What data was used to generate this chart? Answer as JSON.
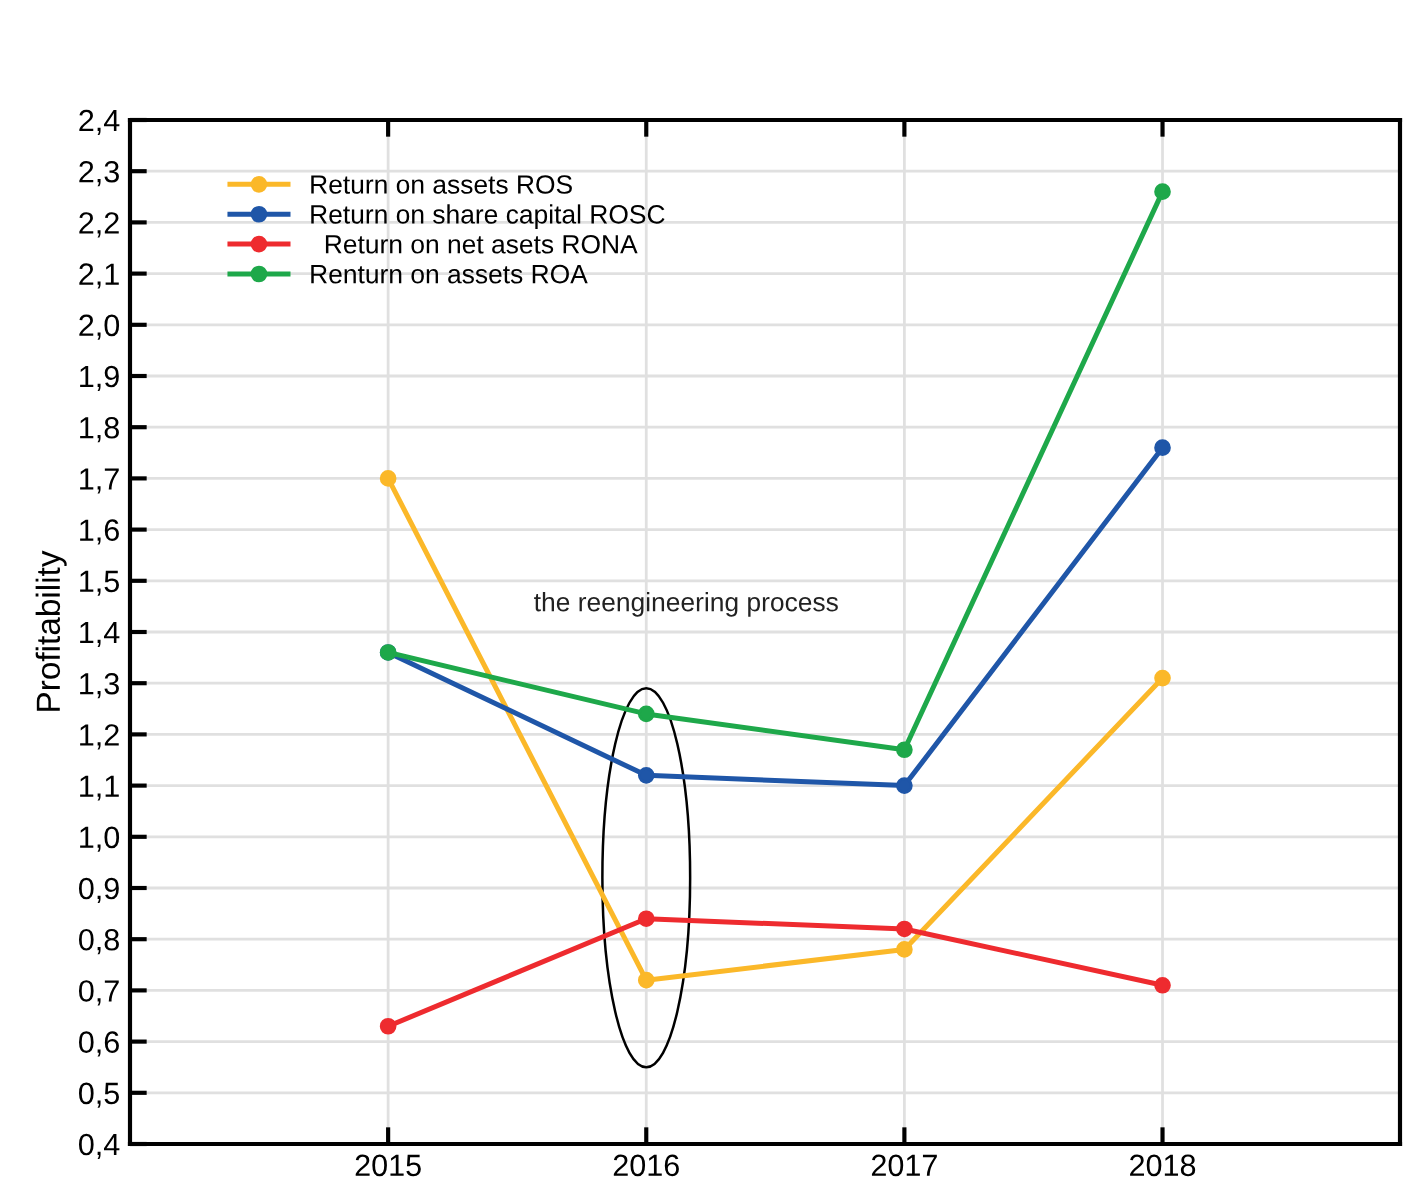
{
  "chart_data": {
    "type": "line",
    "ylabel": "Profitability",
    "x": [
      2015,
      2016,
      2017,
      2018
    ],
    "series": [
      {
        "name": "Return on assets ROS",
        "color": "#fbb829",
        "values": [
          1.7,
          0.72,
          0.78,
          1.31
        ]
      },
      {
        "name": "Return on share capital ROSC",
        "color": "#1f56a8",
        "values": [
          1.36,
          1.12,
          1.1,
          1.76
        ]
      },
      {
        "name": "  Return on net asets RONA",
        "color": "#ee2b2f",
        "values": [
          0.63,
          0.84,
          0.82,
          0.71
        ]
      },
      {
        "name": "Renturn on assets ROA",
        "color": "#1ea84a",
        "values": [
          1.36,
          1.24,
          1.17,
          2.26
        ]
      }
    ],
    "xlim": [
      2014,
      2018.92
    ],
    "xticks": [
      2015,
      2016,
      2017,
      2018
    ],
    "ylim": [
      0.4,
      2.4
    ],
    "yticks": [
      {
        "value": 0.4,
        "label": "0,4"
      },
      {
        "value": 0.5,
        "label": "0,5"
      },
      {
        "value": 0.6,
        "label": "0,6"
      },
      {
        "value": 0.7,
        "label": "0,7"
      },
      {
        "value": 0.8,
        "label": "0,8"
      },
      {
        "value": 0.9,
        "label": "0,9"
      },
      {
        "value": 1.0,
        "label": "1,0"
      },
      {
        "value": 1.1,
        "label": "1,1"
      },
      {
        "value": 1.2,
        "label": "1,2"
      },
      {
        "value": 1.3,
        "label": "1,3"
      },
      {
        "value": 1.4,
        "label": "1,4"
      },
      {
        "value": 1.5,
        "label": "1,5"
      },
      {
        "value": 1.6,
        "label": "1,6"
      },
      {
        "value": 1.7,
        "label": "1,7"
      },
      {
        "value": 1.8,
        "label": "1,8"
      },
      {
        "value": 1.9,
        "label": "1,9"
      },
      {
        "value": 2.0,
        "label": "2,0"
      },
      {
        "value": 2.1,
        "label": "2,1"
      },
      {
        "value": 2.2,
        "label": "2,2"
      },
      {
        "value": 2.3,
        "label": "2,3"
      },
      {
        "value": 2.4,
        "label": "2,4"
      }
    ],
    "annotations": [
      "the reengineering process"
    ],
    "grid": true,
    "legend": "top left",
    "marker": "circle",
    "line_style": "solid"
  }
}
